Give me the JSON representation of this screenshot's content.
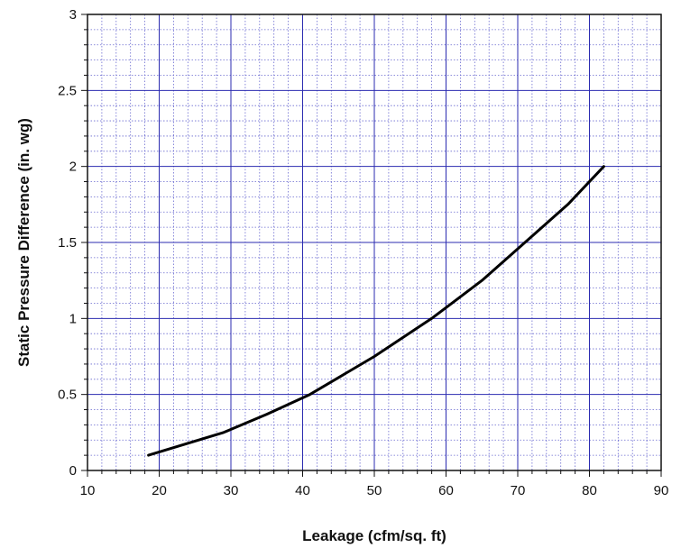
{
  "chart_data": {
    "type": "line",
    "title": "",
    "xlabel": "Leakage (cfm/sq. ft)",
    "ylabel": "Static Pressure Difference (in. wg)",
    "xlim": [
      10,
      90
    ],
    "ylim": [
      0,
      3
    ],
    "x_ticks": [
      10,
      20,
      30,
      40,
      50,
      60,
      70,
      80,
      90
    ],
    "y_ticks": [
      0,
      0.5,
      1,
      1.5,
      2,
      2.5,
      3
    ],
    "x_tick_labels": [
      "10",
      "20",
      "30",
      "40",
      "50",
      "60",
      "70",
      "80",
      "90"
    ],
    "y_tick_labels": [
      "0",
      "0.5",
      "1",
      "1.5",
      "2",
      "2.5",
      "3"
    ],
    "grid": true,
    "grid_major_color": "#2b2bb0",
    "grid_minor_color": "#6a6ad0",
    "line_color": "#000000",
    "series": [
      {
        "x": [
          18.5,
          29,
          35,
          41,
          50,
          58,
          65,
          71,
          77,
          82
        ],
        "y": [
          0.1,
          0.25,
          0.37,
          0.5,
          0.75,
          1.0,
          1.25,
          1.5,
          1.75,
          2.0
        ]
      }
    ]
  }
}
